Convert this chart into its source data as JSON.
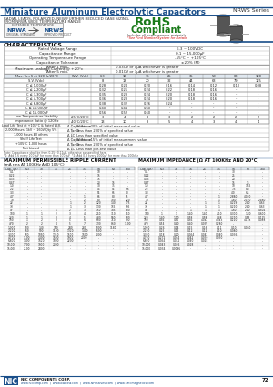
{
  "title": "Miniature Aluminum Electrolytic Capacitors",
  "series": "NRWS Series",
  "header_color": "#1a4f8a",
  "subtitle_line1": "RADIAL LEADS, POLARIZED, NEW FURTHER REDUCED CASE SIZING,",
  "subtitle_line2": "FROM NRWA WIDE TEMPERATURE RANGE",
  "rohs_line1": "RoHS",
  "rohs_line2": "Compliant",
  "rohs_sub": "Includes all homogeneous materials",
  "rohs_note": "*See Find Number System for Details",
  "extended_temp": "EXTENDED TEMPERATURE",
  "nrwa_label": "NRWA",
  "nrws_label": "NRWS",
  "nrwa_sub": "ORIGINAL STANDARD",
  "nrws_sub": "IMPROVED PRODUCT",
  "char_title": "CHARACTERISTICS",
  "char_rows": [
    [
      "Rated Voltage Range",
      "6.3 ~ 100VDC"
    ],
    [
      "Capacitance Range",
      "0.1 ~ 15,000μF"
    ],
    [
      "Operating Temperature Range",
      "-55°C ~ +105°C"
    ],
    [
      "Capacitance Tolerance",
      "±20% (M)"
    ]
  ],
  "leakage_label": "Maximum Leakage Current @ +20°c",
  "leakage_rows": [
    [
      "After 1 min.",
      "0.03CV or 4μA whichever is greater"
    ],
    [
      "After 5 min.",
      "0.01CV or 3μA whichever is greater"
    ]
  ],
  "tan_label": "Max. Tan δ at 120Hz/20°C",
  "tan_wv_header": "W.V. (Vdc)",
  "tan_wv_cols": [
    "6.3",
    "10",
    "16",
    "25",
    "35",
    "50",
    "63",
    "100"
  ],
  "tan_sv_header": "S.V. (Vdc)",
  "tan_sv_cols": [
    "8",
    "13",
    "20",
    "32",
    "44",
    "63",
    "79",
    "125"
  ],
  "tan_rows": [
    [
      "C ≤ 1,000μF",
      "0.28",
      "0.24",
      "0.20",
      "0.16",
      "0.14",
      "0.12",
      "0.10",
      "0.08"
    ],
    [
      "C ≤ 2,200μF",
      "0.32",
      "0.26",
      "0.24",
      "0.22",
      "0.18",
      "0.16",
      "-",
      "-"
    ],
    [
      "C ≤ 3,300μF",
      "0.35",
      "0.28",
      "0.24",
      "0.20",
      "0.18",
      "0.16",
      "-",
      "-"
    ],
    [
      "C ≤ 4,700μF",
      "0.36",
      "0.28",
      "0.24",
      "0.20",
      "0.18",
      "0.16",
      "-",
      "-"
    ],
    [
      "C ≤ 6,800μF",
      "0.38",
      "0.32",
      "0.26",
      "0.24",
      "-",
      "-",
      "-",
      "-"
    ],
    [
      "C ≤ 10,000μF",
      "0.40",
      "0.44",
      "0.60",
      "-",
      "-",
      "-",
      "-",
      "-"
    ],
    [
      "C ≤ 15,000μF",
      "0.56",
      "0.52",
      "0.60",
      "-",
      "-",
      "-",
      "-",
      "-"
    ]
  ],
  "low_temp_label": "Low Temperature Stability\nImpedance Ratio @ 120Hz",
  "low_temp_rows": [
    [
      "-25°C/20°C",
      "3",
      "4",
      "3",
      "3",
      "2",
      "2",
      "2",
      "2"
    ],
    [
      "-40°C/20°C",
      "13",
      "10",
      "8",
      "5",
      "4",
      "3",
      "4",
      "4"
    ]
  ],
  "load_life_label": "Load Life Test at +105°C & Rated W.V.\n2,000 Hours, 1kV ~ 160V Qty 5%\n1,000 Hours All others",
  "load_life_rows": [
    [
      "Δ Capacitance",
      "Within ±20% of initial measured value"
    ],
    [
      "Δ Tan δ",
      "Less than 200% of specified value"
    ],
    [
      "Δ LC",
      "Less than specified value"
    ]
  ],
  "shelf_life_label": "Shelf Life Test\n+105°C 1,000 hours\nNot biased",
  "shelf_life_rows": [
    [
      "Δ Capacitance",
      "Within ±15% of initial measurement value"
    ],
    [
      "Δ Tan δ",
      "Less than 200% of specified value"
    ],
    [
      "Δ LC",
      "Less than pre-test value"
    ]
  ],
  "note1": "Note: Capacitance shall be from 0.25~0.11μF, otherwise as specified here.",
  "note2": "*1: Add 0.6 every 1000μF for more than 1000μF  *2: Add 0.8 every 1000μF for more than 100kHz",
  "ripple_title": "MAXIMUM PERMISSIBLE RIPPLE CURRENT",
  "ripple_subtitle": "(mA rms AT 100KHz AND 105°C)",
  "ripple_cap_header": "Cap. (μF)",
  "ripple_wv_cols": [
    "6.3",
    "10",
    "16",
    "25",
    "35",
    "50",
    "63",
    "100"
  ],
  "ripple_rows": [
    [
      "0.1",
      "-",
      "-",
      "-",
      "-",
      "-",
      "10",
      "-",
      "-"
    ],
    [
      "0.22",
      "-",
      "-",
      "-",
      "-",
      "-",
      "15",
      "-",
      "-"
    ],
    [
      "0.33",
      "-",
      "-",
      "-",
      "-",
      "-",
      "15",
      "-",
      "-"
    ],
    [
      "0.47",
      "-",
      "-",
      "-",
      "-",
      "-",
      "20",
      "15",
      "-"
    ],
    [
      "1.0",
      "-",
      "-",
      "-",
      "-",
      "-",
      "30",
      "35",
      "-"
    ],
    [
      "2.2",
      "-",
      "-",
      "-",
      "-",
      "-",
      "45",
      "55",
      "65"
    ],
    [
      "3.3",
      "-",
      "-",
      "-",
      "-",
      "-",
      "55",
      "65",
      "80"
    ],
    [
      "4.7",
      "-",
      "-",
      "-",
      "-",
      "1",
      "65",
      "80",
      "95"
    ],
    [
      "10",
      "-",
      "-",
      "-",
      "-",
      "2",
      "80",
      "100",
      "120"
    ],
    [
      "22",
      "-",
      "-",
      "-",
      "1",
      "2",
      "120",
      "140",
      "175"
    ],
    [
      "33",
      "-",
      "-",
      "-",
      "1",
      "3",
      "130",
      "155",
      "195"
    ],
    [
      "47",
      "-",
      "-",
      "1",
      "2",
      "3",
      "150",
      "185",
      "230"
    ],
    [
      "100",
      "1",
      "1",
      "2",
      "3",
      "4",
      "250",
      "310",
      "450"
    ],
    [
      "220",
      "1",
      "1",
      "3",
      "4",
      "5",
      "480",
      "560",
      "700"
    ],
    [
      "330",
      "1",
      "2",
      "3",
      "5",
      "6",
      "600",
      "710",
      "890"
    ],
    [
      "470",
      "2",
      "2",
      "4",
      "5",
      "7",
      "730",
      "860",
      "1100"
    ],
    [
      "1,000",
      "100",
      "140",
      "180",
      "240",
      "280",
      "1000",
      "1180",
      "-"
    ],
    [
      "2,200",
      "760",
      "900",
      "1100",
      "1320",
      "1400",
      "1600",
      "-",
      "-"
    ],
    [
      "3,300",
      "930",
      "1050",
      "1310",
      "1500",
      "1600",
      "2000",
      "-",
      "-"
    ],
    [
      "4,700",
      "1100",
      "1400",
      "1600",
      "1900",
      "2000",
      "-",
      "-",
      "-"
    ],
    [
      "6,800",
      "1400",
      "1620",
      "1800",
      "2200",
      "-",
      "-",
      "-",
      "-"
    ],
    [
      "10,000",
      "1700",
      "1900",
      "2000",
      "-",
      "-",
      "-",
      "-",
      "-"
    ],
    [
      "15,000",
      "2100",
      "2400",
      "-",
      "-",
      "-",
      "-",
      "-",
      "-"
    ]
  ],
  "impedance_title": "MAXIMUM IMPEDANCE (Ω AT 100KHz AND 20°C)",
  "impedance_cap_header": "Cap. (μF)",
  "impedance_wv_cols": [
    "6.3",
    "10",
    "16",
    "25",
    "35",
    "50",
    "63",
    "100"
  ],
  "impedance_rows": [
    [
      "0.1",
      "-",
      "-",
      "-",
      "-",
      "-",
      "30",
      "-",
      "-"
    ],
    [
      "0.22",
      "-",
      "-",
      "-",
      "-",
      "-",
      "25",
      "-",
      "-"
    ],
    [
      "0.33",
      "-",
      "-",
      "-",
      "-",
      "-",
      "20",
      "-",
      "-"
    ],
    [
      "0.47",
      "-",
      "-",
      "-",
      "-",
      "-",
      "15",
      "15",
      "-"
    ],
    [
      "1.0",
      "-",
      "-",
      "-",
      "-",
      "-",
      "10",
      "10.5",
      "-"
    ],
    [
      "2.2",
      "-",
      "-",
      "-",
      "-",
      "-",
      "7.5",
      "8.3",
      "-"
    ],
    [
      "3.3",
      "-",
      "-",
      "-",
      "-",
      "-",
      "4.0",
      "6.5",
      "-"
    ],
    [
      "4.7",
      "-",
      "-",
      "-",
      "-",
      "1",
      "2.880",
      "4.020",
      "-"
    ],
    [
      "10",
      "-",
      "-",
      "-",
      "-",
      "1",
      "1.80",
      "2.100",
      "2.480"
    ],
    [
      "22",
      "-",
      "-",
      "-",
      "1",
      "1",
      "0.219",
      "2.40",
      "0.63"
    ],
    [
      "33",
      "-",
      "-",
      "-",
      "1",
      "1",
      "0.210",
      "2.40",
      "0.63"
    ],
    [
      "47",
      "-",
      "-",
      "1",
      "1",
      "1",
      "1.60",
      "2.10",
      "0.504"
    ],
    [
      "100",
      "1",
      "1",
      "1.40",
      "1.40",
      "1.10",
      "0.300",
      "1.30",
      "0.600"
    ],
    [
      "220",
      "1.40",
      "1.10",
      "0.58",
      "0.58",
      "0.48",
      "0.210",
      "0.53",
      "0.125"
    ],
    [
      "330",
      "0.56",
      "0.55",
      "0.56",
      "0.042",
      "0.343",
      "0.220",
      "0.178",
      "0.088"
    ],
    [
      "470",
      "0.54",
      "0.40",
      "0.40",
      "0.035",
      "0.280",
      "-",
      "-",
      "-"
    ],
    [
      "1,000",
      "0.26",
      "0.14",
      "0.15",
      "0.16",
      "0.11",
      "0.10",
      "0.080",
      "-"
    ],
    [
      "2,200",
      "0.25",
      "0.15",
      "0.12",
      "0.12",
      "0.10",
      "0.080",
      "-",
      "-"
    ],
    [
      "3,300",
      "0.18",
      "0.20",
      "0.054",
      "0.042",
      "0.040",
      "0.036",
      "-",
      "-"
    ],
    [
      "4,700",
      "0.272",
      "0.054",
      "0.042",
      "0.030",
      "0.030",
      "-",
      "-",
      "-"
    ],
    [
      "6,800",
      "0.054",
      "0.042",
      "0.040",
      "0.028",
      "-",
      "-",
      "-",
      "-"
    ],
    [
      "10,000",
      "0.043",
      "0.026",
      "0.028",
      "-",
      "-",
      "-",
      "-",
      "-"
    ],
    [
      "15,000",
      "0.034",
      "0.0096",
      "-",
      "-",
      "-",
      "-",
      "-",
      "-"
    ]
  ],
  "footer_logo": "NIC",
  "footer_company": "NIC COMPONENTS CORP.",
  "footer_web": "www.niccomp.com  |  www.bwESW.com  |  www.NPassives.com  |  www.SMTmagnetics.com",
  "footer_page": "72",
  "background_color": "#ffffff",
  "header_color_text": "#1a4f8a"
}
